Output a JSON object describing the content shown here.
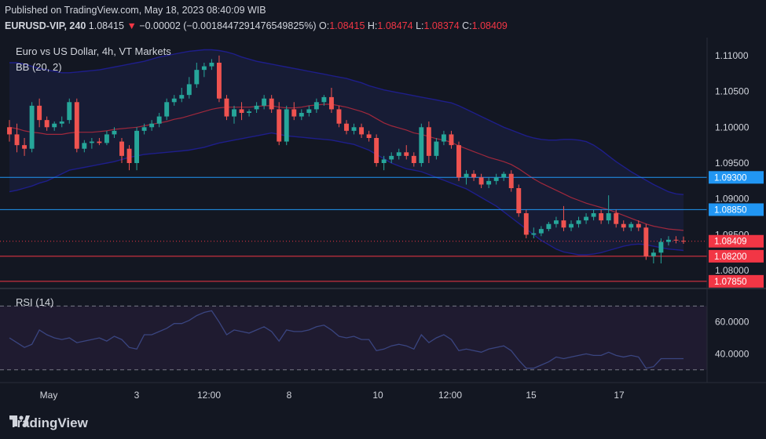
{
  "header": {
    "published": "Published on TradingView.com, May 18, 2023 08:40:09 WIB",
    "symbol": "EURUSD-VIP, 240",
    "last": "1.08415",
    "change": "−0.00002 (−0.0018447291476549825%)",
    "o_label": "O:",
    "o_value": "1.08415",
    "h_label": "H:",
    "h_value": "1.08474",
    "l_label": "L:",
    "l_value": "1.08374",
    "c_label": "C:",
    "c_value": "1.08409"
  },
  "overlay": {
    "title": "Euro vs US Dollar, 4h, VT Markets",
    "bb": "BB (20, 2)",
    "rsi": "RSI (14)"
  },
  "footer": {
    "brand": "TradingView"
  },
  "colors": {
    "background": "#131722",
    "up": "#26a69a",
    "down": "#ef5350",
    "bb_band": "#1e1e8a",
    "bb_basis": "#a0283c",
    "h_line_blue": "#2196f3",
    "h_line_red": "#f23645",
    "rsi_line": "#3a4580"
  },
  "chart_data": {
    "type": "candlestick",
    "title": "Euro vs US Dollar, 4h, VT Markets",
    "price_axis": {
      "ticks": [
        "1.11000",
        "1.10500",
        "1.10000",
        "1.09500",
        "1.09000",
        "1.08500",
        "1.08000"
      ],
      "ylim": [
        1.0775,
        1.1125
      ]
    },
    "x_ticks": [
      "May",
      "3",
      "12:00",
      "8",
      "10",
      "12:00",
      "15",
      "17"
    ],
    "price_labels": [
      {
        "text": "1.09300",
        "color": "#2196f3"
      },
      {
        "text": "1.08850",
        "color": "#2196f3"
      },
      {
        "text": "1.08409",
        "color": "#f23645"
      },
      {
        "text": "1.08200",
        "color": "#f23645"
      },
      {
        "text": "1.07850",
        "color": "#f23645"
      }
    ],
    "horizontal_lines": [
      {
        "price": 1.093,
        "color": "#2196f3"
      },
      {
        "price": 1.0885,
        "color": "#2196f3"
      },
      {
        "price": 1.082,
        "color": "#f23645"
      },
      {
        "price": 1.0785,
        "color": "#f23645"
      }
    ],
    "current_price": 1.08409,
    "candles": [
      [
        1.1,
        1.101,
        1.098,
        1.099
      ],
      [
        1.099,
        1.1005,
        1.0965,
        1.0975
      ],
      [
        1.0975,
        1.0985,
        1.096,
        1.097
      ],
      [
        1.097,
        1.1035,
        1.0965,
        1.103
      ],
      [
        1.103,
        1.104,
        1.1,
        1.101
      ],
      [
        1.101,
        1.1015,
        1.0995,
        1.1
      ],
      [
        1.1,
        1.1008,
        1.0995,
        1.1005
      ],
      [
        1.1005,
        1.1015,
        1.1,
        1.1008
      ],
      [
        1.101,
        1.104,
        1.1005,
        1.1035
      ],
      [
        1.1035,
        1.104,
        1.0965,
        1.097
      ],
      [
        1.097,
        1.0982,
        1.0965,
        1.0978
      ],
      [
        1.0978,
        1.0985,
        1.097,
        1.098
      ],
      [
        1.098,
        1.0985,
        1.0975,
        1.0978
      ],
      [
        1.0978,
        1.0995,
        1.0975,
        1.099
      ],
      [
        1.099,
        1.1,
        1.0985,
        1.0995
      ],
      [
        1.098,
        1.0985,
        1.095,
        1.096
      ],
      [
        1.097,
        1.0975,
        1.094,
        1.095
      ],
      [
        1.095,
        1.1,
        1.094,
        1.0995
      ],
      [
        1.0995,
        1.1005,
        1.099,
        1.1
      ],
      [
        1.1,
        1.101,
        1.0995,
        1.1005
      ],
      [
        1.1005,
        1.102,
        1.1,
        1.1015
      ],
      [
        1.1015,
        1.104,
        1.101,
        1.1035
      ],
      [
        1.1035,
        1.1045,
        1.103,
        1.104
      ],
      [
        1.104,
        1.1055,
        1.1035,
        1.1045
      ],
      [
        1.1045,
        1.107,
        1.104,
        1.106
      ],
      [
        1.106,
        1.109,
        1.1055,
        1.108
      ],
      [
        1.108,
        1.109,
        1.107,
        1.1085
      ],
      [
        1.1085,
        1.1095,
        1.108,
        1.109
      ],
      [
        1.109,
        1.11,
        1.1035,
        1.104
      ],
      [
        1.104,
        1.1045,
        1.101,
        1.1015
      ],
      [
        1.1015,
        1.103,
        1.1005,
        1.1025
      ],
      [
        1.1025,
        1.1035,
        1.101,
        1.102
      ],
      [
        1.102,
        1.1025,
        1.1015,
        1.1022
      ],
      [
        1.1025,
        1.1035,
        1.102,
        1.103
      ],
      [
        1.103,
        1.1045,
        1.1025,
        1.104
      ],
      [
        1.104,
        1.1045,
        1.102,
        1.1025
      ],
      [
        1.1025,
        1.1035,
        1.0975,
        1.098
      ],
      [
        1.098,
        1.103,
        1.0975,
        1.1025
      ],
      [
        1.1025,
        1.1035,
        1.101,
        1.1015
      ],
      [
        1.1015,
        1.1025,
        1.101,
        1.102
      ],
      [
        1.102,
        1.103,
        1.1015,
        1.1025
      ],
      [
        1.1025,
        1.104,
        1.102,
        1.1035
      ],
      [
        1.1035,
        1.1045,
        1.103,
        1.1042
      ],
      [
        1.1042,
        1.1055,
        1.102,
        1.1025
      ],
      [
        1.1025,
        1.103,
        1.1,
        1.1005
      ],
      [
        1.1005,
        1.101,
        1.099,
        1.0995
      ],
      [
        1.0995,
        1.1005,
        1.099,
        1.1
      ],
      [
        1.1,
        1.1005,
        1.0985,
        1.099
      ],
      [
        1.099,
        1.0995,
        1.098,
        1.0985
      ],
      [
        1.0985,
        1.099,
        1.0945,
        1.095
      ],
      [
        1.095,
        1.096,
        1.094,
        1.0955
      ],
      [
        1.0955,
        1.0965,
        1.095,
        1.096
      ],
      [
        1.096,
        1.097,
        1.0955,
        1.0965
      ],
      [
        1.0965,
        1.0975,
        1.0955,
        1.096
      ],
      [
        1.096,
        1.0965,
        1.0945,
        1.095
      ],
      [
        1.095,
        1.1005,
        1.0945,
        1.1
      ],
      [
        1.1,
        1.1008,
        1.095,
        1.096
      ],
      [
        1.096,
        1.0985,
        1.0955,
        1.098
      ],
      [
        1.098,
        1.0995,
        1.0975,
        1.099
      ],
      [
        1.099,
        1.0995,
        1.097,
        1.0975
      ],
      [
        1.0975,
        1.098,
        1.0925,
        1.093
      ],
      [
        1.093,
        1.094,
        1.092,
        1.0935
      ],
      [
        1.0935,
        1.094,
        1.0925,
        1.093
      ],
      [
        1.093,
        1.0935,
        1.0915,
        1.092
      ],
      [
        1.092,
        1.093,
        1.0915,
        1.0925
      ],
      [
        1.0925,
        1.0935,
        1.092,
        1.093
      ],
      [
        1.093,
        1.0938,
        1.0925,
        1.0935
      ],
      [
        1.0935,
        1.094,
        1.091,
        1.0915
      ],
      [
        1.0915,
        1.092,
        1.0875,
        1.088
      ],
      [
        1.088,
        1.0885,
        1.0845,
        1.085
      ],
      [
        1.085,
        1.086,
        1.0845,
        1.0852
      ],
      [
        1.0852,
        1.0862,
        1.0848,
        1.0858
      ],
      [
        1.0858,
        1.0868,
        1.0855,
        1.0865
      ],
      [
        1.0865,
        1.0875,
        1.086,
        1.087
      ],
      [
        1.087,
        1.089,
        1.0855,
        1.086
      ],
      [
        1.086,
        1.087,
        1.0855,
        1.0865
      ],
      [
        1.0865,
        1.0875,
        1.086,
        1.087
      ],
      [
        1.087,
        1.088,
        1.0865,
        1.0875
      ],
      [
        1.0875,
        1.0885,
        1.087,
        1.088
      ],
      [
        1.088,
        1.0885,
        1.0865,
        1.087
      ],
      [
        1.087,
        1.0905,
        1.0865,
        1.088
      ],
      [
        1.088,
        1.0885,
        1.086,
        1.0865
      ],
      [
        1.0865,
        1.087,
        1.0855,
        1.086
      ],
      [
        1.086,
        1.0868,
        1.0855,
        1.0865
      ],
      [
        1.0865,
        1.087,
        1.0855,
        1.086
      ],
      [
        1.086,
        1.0865,
        1.0815,
        1.082
      ],
      [
        1.082,
        1.083,
        1.081,
        1.0825
      ],
      [
        1.0825,
        1.0845,
        1.081,
        1.084
      ],
      [
        1.084,
        1.0848,
        1.0835,
        1.0843
      ],
      [
        1.0843,
        1.0848,
        1.0838,
        1.0842
      ],
      [
        1.08415,
        1.08474,
        1.08374,
        1.08409
      ]
    ],
    "bb_basis": [
      1.1,
      1.0998,
      1.0995,
      1.0993,
      1.0992,
      1.099,
      1.099,
      1.099,
      1.0992,
      1.0993,
      1.0993,
      1.0993,
      1.0994,
      1.0995,
      1.0997,
      1.0998,
      1.0999,
      1.1,
      1.1002,
      1.1004,
      1.1006,
      1.1008,
      1.1011,
      1.1013,
      1.1016,
      1.1019,
      1.1022,
      1.1025,
      1.1027,
      1.1028,
      1.1028,
      1.1028,
      1.1028,
      1.1029,
      1.103,
      1.103,
      1.1028,
      1.1027,
      1.1027,
      1.1028,
      1.103,
      1.1031,
      1.1032,
      1.1032,
      1.103,
      1.1028,
      1.1025,
      1.1022,
      1.1018,
      1.1012,
      1.1006,
      1.1002,
      1.0999,
      1.0996,
      1.0992,
      1.099,
      1.0987,
      1.0984,
      1.0982,
      1.0979,
      1.0974,
      1.097,
      1.0966,
      1.0962,
      1.0958,
      1.0955,
      1.0952,
      1.0948,
      1.0942,
      1.0935,
      1.0928,
      1.0922,
      1.0917,
      1.0912,
      1.0907,
      1.0902,
      1.0898,
      1.0894,
      1.0891,
      1.0888,
      1.0885,
      1.0881,
      1.0877,
      1.0873,
      1.0869,
      1.0865,
      1.0862,
      1.086,
      1.0858,
      1.0857,
      1.0856
    ],
    "bb_upper": [
      1.109,
      1.109,
      1.1088,
      1.1085,
      1.1082,
      1.108,
      1.1078,
      1.1076,
      1.1076,
      1.1077,
      1.1078,
      1.1079,
      1.108,
      1.1082,
      1.1084,
      1.1086,
      1.1088,
      1.109,
      1.1092,
      1.1095,
      1.1098,
      1.11,
      1.1102,
      1.1104,
      1.1106,
      1.1107,
      1.1108,
      1.1108,
      1.1107,
      1.1105,
      1.1102,
      1.1098,
      1.1095,
      1.1092,
      1.109,
      1.1088,
      1.1086,
      1.1084,
      1.1082,
      1.108,
      1.1078,
      1.1076,
      1.1074,
      1.1072,
      1.107,
      1.1068,
      1.1065,
      1.1062,
      1.1058,
      1.1055,
      1.1052,
      1.105,
      1.1048,
      1.1046,
      1.1044,
      1.1042,
      1.104,
      1.1038,
      1.1036,
      1.1034,
      1.103,
      1.1025,
      1.102,
      1.1015,
      1.101,
      1.1005,
      1.1,
      1.0996,
      1.0992,
      1.0988,
      1.0985,
      1.0983,
      1.0982,
      1.0982,
      1.0983,
      1.0983,
      1.0982,
      1.098,
      1.0975,
      1.0968,
      1.096,
      1.0952,
      1.0945,
      1.0938,
      1.0932,
      1.0926,
      1.092,
      1.0915,
      1.091,
      1.0907,
      1.0906
    ],
    "bb_lower": [
      1.091,
      1.0912,
      1.0915,
      1.0918,
      1.0922,
      1.0925,
      1.093,
      1.0935,
      1.094,
      1.0942,
      1.0944,
      1.0946,
      1.0948,
      1.095,
      1.0952,
      1.0955,
      1.0958,
      1.096,
      1.0962,
      1.0963,
      1.0964,
      1.0965,
      1.0966,
      1.0967,
      1.0968,
      1.097,
      1.0972,
      1.0975,
      1.0978,
      1.098,
      1.0982,
      1.0984,
      1.0986,
      1.0988,
      1.099,
      1.0992,
      1.099,
      1.0988,
      1.0987,
      1.0986,
      1.0985,
      1.0984,
      1.0983,
      1.0982,
      1.098,
      1.0978,
      1.0976,
      1.0972,
      1.0968,
      1.0962,
      1.0956,
      1.095,
      1.0946,
      1.0942,
      1.094,
      1.0938,
      1.0934,
      1.093,
      1.0926,
      1.0922,
      1.0918,
      1.0914,
      1.0908,
      1.0902,
      1.0896,
      1.089,
      1.0882,
      1.0874,
      1.0866,
      1.0858,
      1.085,
      1.0842,
      1.0836,
      1.083,
      1.0826,
      1.0824,
      1.0822,
      1.0822,
      1.0823,
      1.0825,
      1.0828,
      1.0831,
      1.0834,
      1.0836,
      1.0837,
      1.0836,
      1.0834,
      1.0832,
      1.083,
      1.0829,
      1.0828
    ],
    "rsi": {
      "ticks": [
        "60.0000",
        "40.0000"
      ],
      "ylim": [
        22,
        80
      ],
      "levels": [
        70,
        30
      ],
      "values": [
        50,
        47,
        44,
        46,
        55,
        52,
        50,
        49,
        50,
        47,
        48,
        49,
        50,
        48,
        51,
        49,
        44,
        43,
        52,
        52,
        54,
        56,
        59,
        59,
        61,
        64,
        66,
        67,
        60,
        52,
        55,
        54,
        53,
        55,
        57,
        54,
        48,
        55,
        54,
        54,
        55,
        57,
        58,
        55,
        51,
        50,
        51,
        49,
        49,
        42,
        43,
        45,
        46,
        45,
        43,
        52,
        47,
        50,
        52,
        49,
        42,
        43,
        42,
        41,
        43,
        44,
        45,
        42,
        36,
        31,
        31,
        33,
        35,
        38,
        37,
        38,
        39,
        40,
        39,
        39,
        41,
        39,
        38,
        39,
        38,
        31,
        32,
        37,
        37,
        37,
        37
      ]
    }
  }
}
